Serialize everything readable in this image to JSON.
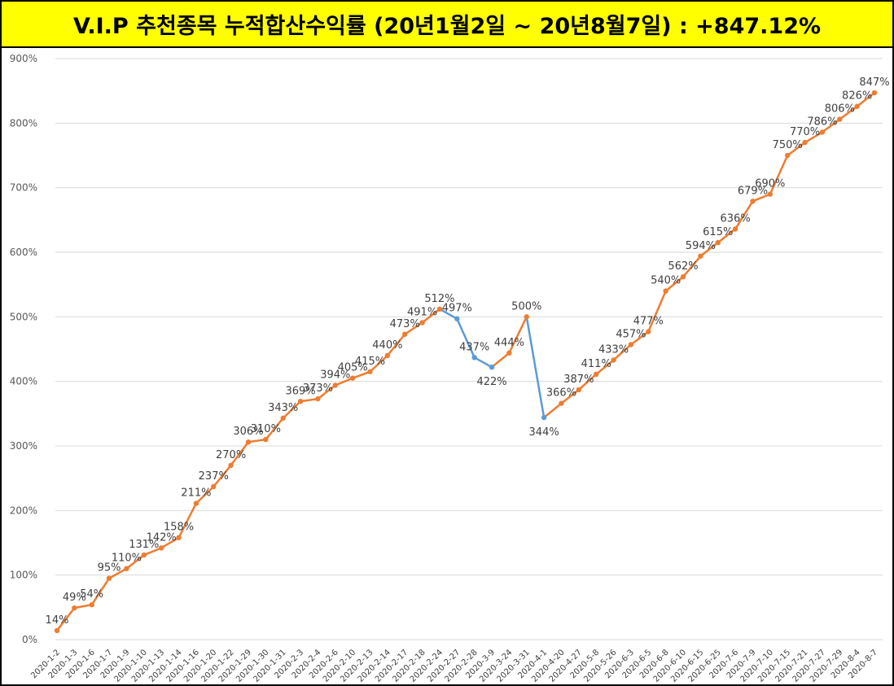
{
  "header": {
    "title": "V.I.P 추천종목 누적합산수익률 (20년1월2일 ~ 20년8월7일) : +847.12%"
  },
  "colors": {
    "title_bg": "#ffff00",
    "line_up": "#ed7d31",
    "line_down": "#5b9bd5",
    "grid": "#d9d9d9"
  },
  "chart_data": {
    "type": "line",
    "title": "V.I.P 추천종목 누적합산수익률 (20년1월2일 ~ 20년8월7일) : +847.12%",
    "xlabel": "",
    "ylabel": "",
    "ylim": [
      0,
      900
    ],
    "y_ticks": [
      "0%",
      "100%",
      "200%",
      "300%",
      "400%",
      "500%",
      "600%",
      "700%",
      "800%",
      "900%"
    ],
    "grid": true,
    "legend": "none",
    "categories": [
      "2020-1-2",
      "2020-1-3",
      "2020-1-6",
      "2020-1-7",
      "2020-1-9",
      "2020-1-10",
      "2020-1-13",
      "2020-1-14",
      "2020-1-16",
      "2020-1-20",
      "2020-1-22",
      "2020-1-29",
      "2020-1-30",
      "2020-1-31",
      "2020-2-3",
      "2020-2-4",
      "2020-2-6",
      "2020-2-10",
      "2020-2-13",
      "2020-2-14",
      "2020-2-17",
      "2020-2-18",
      "2020-2-24",
      "2020-2-27",
      "2020-2-28",
      "2020-3-9",
      "2020-3-24",
      "2020-3-31",
      "2020-4-1",
      "2020-4-20",
      "2020-4-27",
      "2020-5-8",
      "2020-5-26",
      "2020-6-3",
      "2020-6-5",
      "2020-6-8",
      "2020-6-10",
      "2020-6-15",
      "2020-6-25",
      "2020-7-6",
      "2020-7-9",
      "2020-7-10",
      "2020-7-15",
      "2020-7-21",
      "2020-7-27",
      "2020-7-29",
      "2020-8-4",
      "2020-8-7"
    ],
    "values": [
      14,
      49,
      54,
      95,
      110,
      131,
      142,
      158,
      211,
      237,
      270,
      306,
      310,
      343,
      369,
      373,
      394,
      405,
      415,
      440,
      473,
      491,
      512,
      497,
      437,
      422,
      444,
      500,
      344,
      366,
      387,
      411,
      433,
      457,
      477,
      540,
      562,
      594,
      615,
      636,
      679,
      690,
      750,
      770,
      786,
      806,
      826,
      847
    ],
    "data_labels": [
      "14%",
      "49%",
      "54%",
      "95%",
      "110%",
      "131%",
      "142%",
      "158%",
      "211%",
      "237%",
      "270%",
      "306%",
      "310%",
      "343%",
      "369%",
      "373%",
      "394%",
      "405%",
      "415%",
      "440%",
      "473%",
      "491%",
      "512%",
      "497%",
      "437%",
      "422%",
      "444%",
      "500%",
      "344%",
      "366%",
      "387%",
      "411%",
      "433%",
      "457%",
      "477%",
      "540%",
      "562%",
      "594%",
      "615%",
      "636%",
      "679%",
      "690%",
      "750%",
      "770%",
      "786%",
      "806%",
      "826%",
      "847%"
    ]
  }
}
